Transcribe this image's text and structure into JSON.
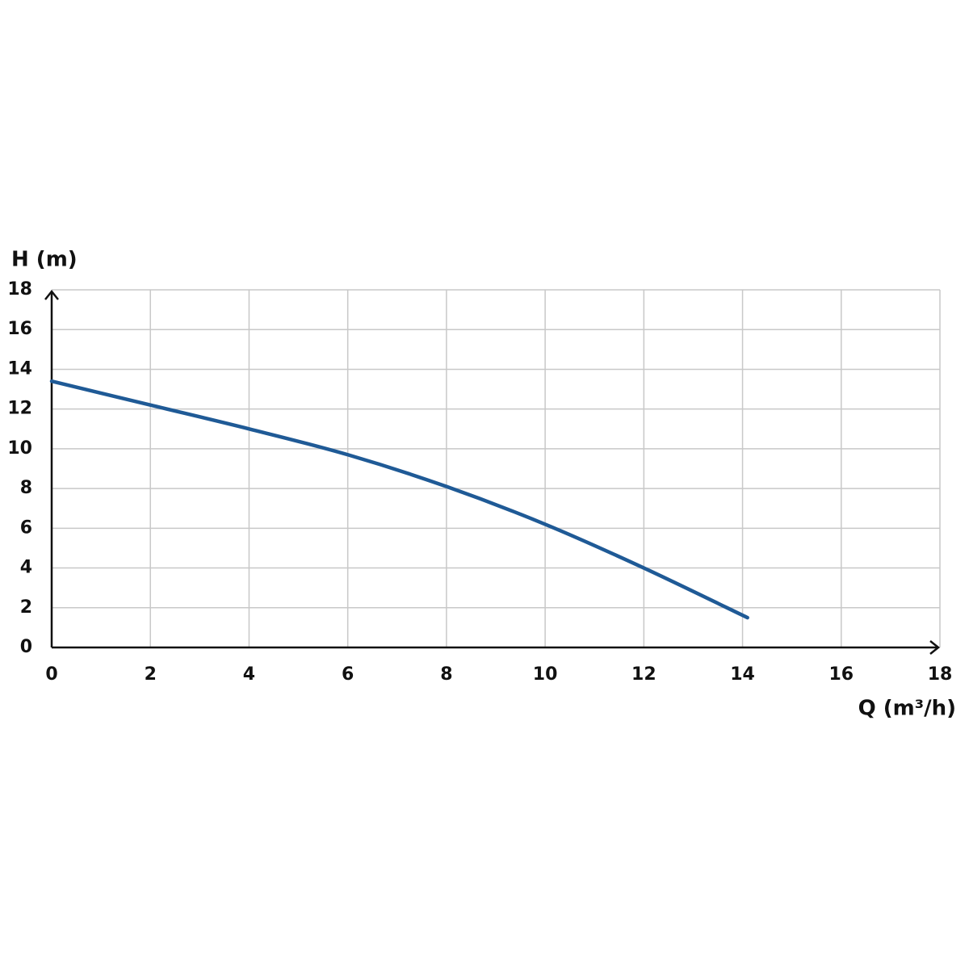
{
  "chart_data": {
    "type": "line",
    "y_label": "H (m)",
    "x_label": "Q (m³/h)",
    "x": [
      0,
      2,
      4,
      6,
      8,
      10,
      12,
      14.1
    ],
    "series": [
      {
        "name": "H",
        "color": "#1f5a96",
        "values": [
          13.4,
          12.2,
          11.0,
          9.7,
          8.1,
          6.2,
          4.0,
          1.5
        ]
      }
    ],
    "xlim": [
      0,
      18
    ],
    "xticks": [
      0,
      2,
      4,
      6,
      8,
      10,
      12,
      14,
      16,
      18
    ],
    "ylim": [
      0,
      18
    ],
    "yticks": [
      0,
      2,
      4,
      6,
      8,
      10,
      12,
      14,
      16,
      18
    ],
    "grid": true
  }
}
